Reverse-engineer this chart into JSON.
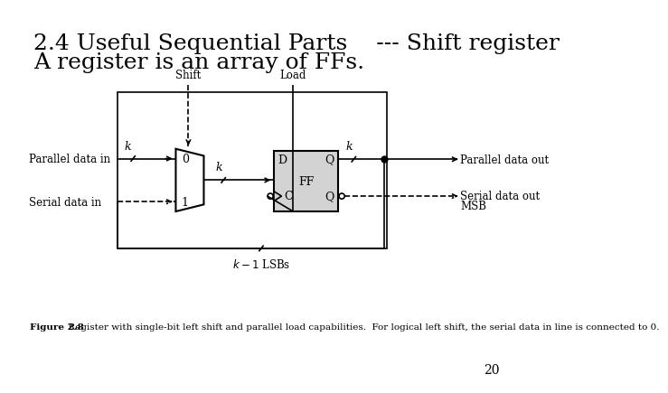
{
  "title": "2.4 Useful Sequential Parts    --- Shift register",
  "subtitle": "A register is an array of FFs.",
  "fig_bold": "Figure 2.8",
  "fig_rest": "  Register with single-bit left shift and parallel load capabilities.  For logical left shift, the serial data in line is connected to 0.",
  "page_number": "20",
  "bg_color": "#ffffff",
  "lc": "#000000",
  "mux_fill": "#ffffff",
  "ff_fill": "#d3d3d3",
  "title_fontsize": 18,
  "subtitle_fontsize": 18,
  "caption_fontsize": 7.5,
  "diagram_label_fontsize": 9,
  "page_fontsize": 10
}
